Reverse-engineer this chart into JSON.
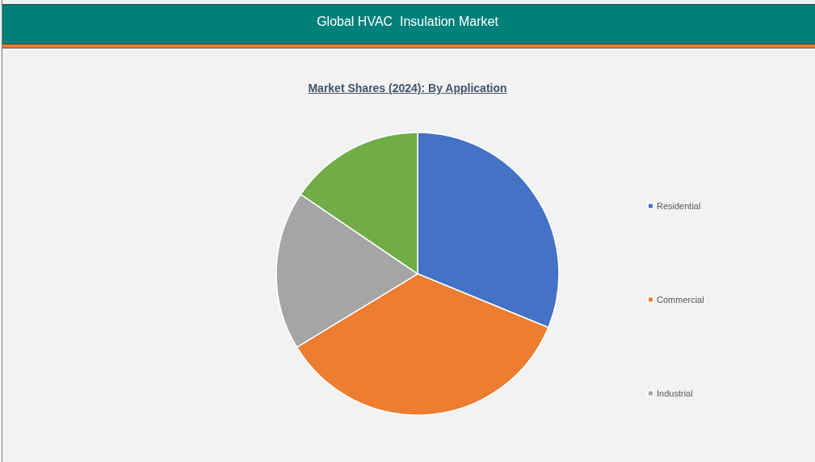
{
  "chart_data": {
    "type": "pie",
    "title": "Global HVAC  Insulation Market",
    "subtitle": "Market Shares (2024): By Application",
    "categories": [
      "Residential",
      "Commercial",
      "Industrial",
      null
    ],
    "values": [
      31.2,
      35.1,
      18.2,
      15.5
    ],
    "colors": [
      "#4472c4",
      "#ed7d31",
      "#a5a5a5",
      "#70ad47"
    ],
    "legend": "right"
  }
}
